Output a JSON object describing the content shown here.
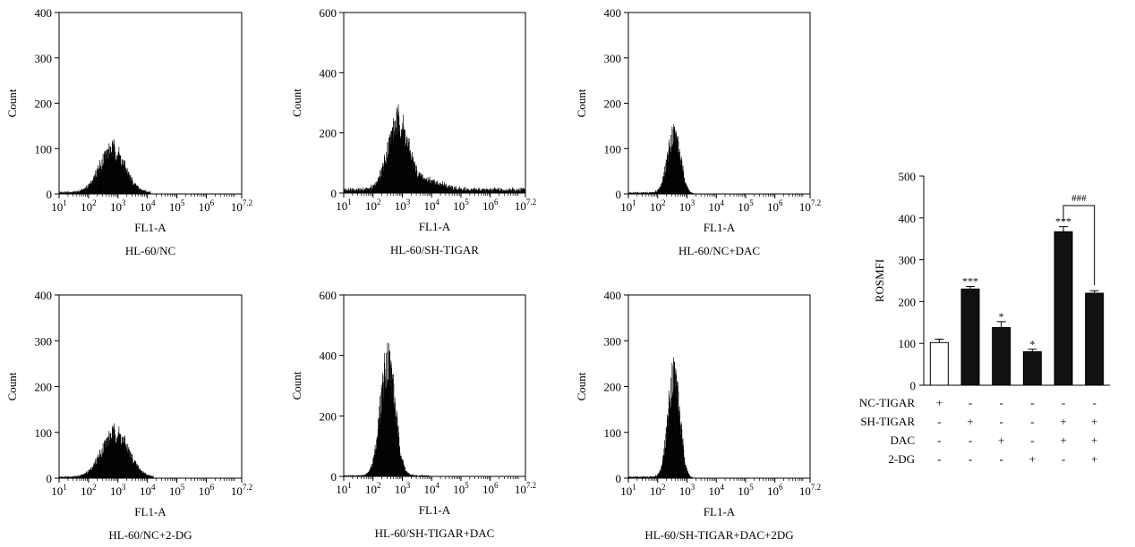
{
  "histograms": [
    {
      "caption": "HL-60/NC",
      "xlabel": "FL1-A",
      "ylabel": "Count",
      "ylim": [
        0,
        400
      ],
      "yticks": [
        "0",
        "100",
        "200",
        "300",
        "400"
      ],
      "xticks": [
        {
          "b": "10",
          "e": "1"
        },
        {
          "b": "10",
          "e": "2"
        },
        {
          "b": "10",
          "e": "3"
        },
        {
          "b": "10",
          "e": "4"
        },
        {
          "b": "10",
          "e": "5"
        },
        {
          "b": "10",
          "e": "6"
        },
        {
          "b": "10",
          "e": "7.2"
        }
      ],
      "peak_log": 2.8,
      "peak_count": 95,
      "width": 0.42,
      "baseline": 4,
      "tail_log": 4.1
    },
    {
      "caption": "HL-60/SH-TIGAR",
      "xlabel": "FL1-A",
      "ylabel": "Count",
      "ylim": [
        0,
        600
      ],
      "yticks": [
        "0",
        "200",
        "400",
        "600"
      ],
      "xticks": [
        {
          "b": "10",
          "e": "1"
        },
        {
          "b": "10",
          "e": "2"
        },
        {
          "b": "10",
          "e": "3"
        },
        {
          "b": "10",
          "e": "4"
        },
        {
          "b": "10",
          "e": "5"
        },
        {
          "b": "10",
          "e": "6"
        },
        {
          "b": "10",
          "e": "7.2"
        }
      ],
      "peak_log": 2.85,
      "peak_count": 225,
      "width": 0.35,
      "baseline": 12,
      "tail_log": 7.2,
      "shoulder_log": 3.9,
      "shoulder_count": 30
    },
    {
      "caption": "HL-60/NC+DAC",
      "xlabel": "FL1-A",
      "ylabel": "Count",
      "ylim": [
        0,
        400
      ],
      "yticks": [
        "0",
        "100",
        "200",
        "300",
        "400"
      ],
      "xticks": [
        {
          "b": "10",
          "e": "1"
        },
        {
          "b": "10",
          "e": "2"
        },
        {
          "b": "10",
          "e": "3"
        },
        {
          "b": "10",
          "e": "4"
        },
        {
          "b": "10",
          "e": "5"
        },
        {
          "b": "10",
          "e": "6"
        },
        {
          "b": "10",
          "e": "7.2"
        }
      ],
      "peak_log": 2.55,
      "peak_count": 130,
      "width": 0.22,
      "baseline": 3,
      "tail_log": 3.0
    },
    {
      "caption": "HL-60/NC+2-DG",
      "xlabel": "FL1-A",
      "ylabel": "Count",
      "ylim": [
        0,
        400
      ],
      "yticks": [
        "0",
        "100",
        "200",
        "300",
        "400"
      ],
      "xticks": [
        {
          "b": "10",
          "e": "1"
        },
        {
          "b": "10",
          "e": "2"
        },
        {
          "b": "10",
          "e": "3"
        },
        {
          "b": "10",
          "e": "4"
        },
        {
          "b": "10",
          "e": "5"
        },
        {
          "b": "10",
          "e": "6"
        },
        {
          "b": "10",
          "e": "7.2"
        }
      ],
      "peak_log": 2.9,
      "peak_count": 95,
      "width": 0.45,
      "baseline": 3,
      "tail_log": 4.2
    },
    {
      "caption": "HL-60/SH-TIGAR+DAC",
      "xlabel": "FL1-A",
      "ylabel": "Count",
      "ylim": [
        0,
        600
      ],
      "yticks": [
        "0",
        "200",
        "400",
        "600"
      ],
      "xticks": [
        {
          "b": "10",
          "e": "1"
        },
        {
          "b": "10",
          "e": "2"
        },
        {
          "b": "10",
          "e": "3"
        },
        {
          "b": "10",
          "e": "4"
        },
        {
          "b": "10",
          "e": "5"
        },
        {
          "b": "10",
          "e": "6"
        },
        {
          "b": "10",
          "e": "7.2"
        }
      ],
      "peak_log": 2.5,
      "peak_count": 380,
      "width": 0.25,
      "baseline": 3,
      "tail_log": 3.9
    },
    {
      "caption": "HL-60/SH-TIGAR+DAC+2DG",
      "xlabel": "FL1-A",
      "ylabel": "Count",
      "ylim": [
        0,
        400
      ],
      "yticks": [
        "0",
        "100",
        "200",
        "300",
        "400"
      ],
      "xticks": [
        {
          "b": "10",
          "e": "1"
        },
        {
          "b": "10",
          "e": "2"
        },
        {
          "b": "10",
          "e": "3"
        },
        {
          "b": "10",
          "e": "4"
        },
        {
          "b": "10",
          "e": "5"
        },
        {
          "b": "10",
          "e": "6"
        },
        {
          "b": "10",
          "e": "7.2"
        }
      ],
      "peak_log": 2.55,
      "peak_count": 225,
      "width": 0.2,
      "baseline": 3,
      "tail_log": 3.0
    }
  ],
  "chart_data": {
    "type": "bar",
    "ylabel": "ROSMFI",
    "ylim": [
      0,
      500
    ],
    "yticks": [
      "0",
      "100",
      "200",
      "300",
      "400",
      "500"
    ],
    "values": [
      102,
      230,
      138,
      80,
      367,
      220
    ],
    "errors": [
      8,
      6,
      14,
      6,
      12,
      6
    ],
    "fills": [
      "#ffffff",
      "#111111",
      "#111111",
      "#111111",
      "#111111",
      "#111111"
    ],
    "significance": [
      "",
      "***",
      "*",
      "*",
      "***",
      ""
    ],
    "bracket": {
      "from": 4,
      "to": 5,
      "label": "###"
    },
    "conditions": [
      {
        "label": "NC-TIGAR",
        "marks": [
          "+",
          "-",
          "-",
          "-",
          "-",
          "-"
        ]
      },
      {
        "label": "SH-TIGAR",
        "marks": [
          "-",
          "+",
          "-",
          "-",
          "+",
          "+"
        ]
      },
      {
        "label": "DAC",
        "marks": [
          "-",
          "-",
          "+",
          "-",
          "+",
          "+"
        ]
      },
      {
        "label": "2-DG",
        "marks": [
          "-",
          "-",
          "-",
          "+",
          "-",
          "+"
        ]
      }
    ]
  },
  "colors": {
    "bar_fill": "#111111",
    "histogram_fill": "#000000",
    "axis": "#000000"
  }
}
